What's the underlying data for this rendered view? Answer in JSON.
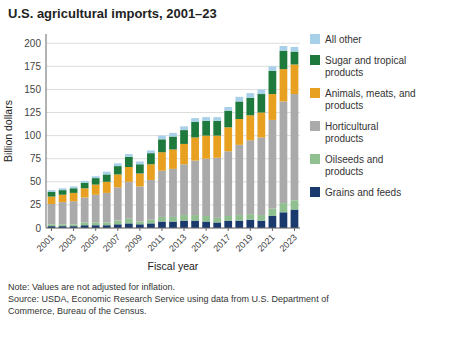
{
  "chart_data": {
    "type": "bar",
    "stacked": true,
    "title": "U.S. agricultural imports, 2001–23",
    "xlabel": "Fiscal year",
    "ylabel": "Billion dollars",
    "annotations": [
      "Note: Values are not adjusted for inflation.\nSource: USDA, Economic Research Service using data from U.S. Department of\nCommerce, Bureau of the Census."
    ],
    "categories": [
      "2001",
      null,
      "2003",
      null,
      "2005",
      null,
      "2007",
      null,
      "2009",
      null,
      "2011",
      null,
      "2013",
      null,
      "2015",
      null,
      "2017",
      null,
      "2019",
      null,
      "2021",
      null,
      "2023"
    ],
    "series": [
      {
        "name": "Grains and feeds",
        "color": "#1a3a6e",
        "values": [
          2,
          2,
          2,
          3,
          3,
          3,
          4,
          5,
          4,
          5,
          7,
          7,
          8,
          8,
          7,
          6,
          8,
          8,
          9,
          8,
          13,
          17,
          20
        ]
      },
      {
        "name": "Oilseeds and\nproducts",
        "color": "#90c090",
        "values": [
          2,
          2,
          2,
          3,
          3,
          3,
          4,
          5,
          3,
          4,
          5,
          5,
          6,
          6,
          6,
          5,
          5,
          6,
          6,
          6,
          8,
          10,
          10
        ]
      },
      {
        "name": "Horticultural\nproducts",
        "color": "#aaaaaa",
        "values": [
          22,
          24,
          25,
          27,
          30,
          32,
          36,
          40,
          38,
          43,
          50,
          52,
          55,
          59,
          62,
          65,
          70,
          76,
          80,
          84,
          96,
          110,
          115
        ]
      },
      {
        "name": "Animals, meats, and\nproducts",
        "color": "#e8a020",
        "values": [
          8,
          8,
          9,
          10,
          11,
          12,
          14,
          16,
          14,
          17,
          20,
          21,
          22,
          25,
          25,
          24,
          26,
          28,
          27,
          27,
          28,
          35,
          32
        ]
      },
      {
        "name": "Sugar and tropical\nproducts",
        "color": "#1e7a3c",
        "values": [
          5,
          5,
          5,
          6,
          7,
          8,
          9,
          11,
          10,
          12,
          14,
          14,
          15,
          17,
          16,
          16,
          18,
          19,
          19,
          20,
          25,
          20,
          14
        ]
      },
      {
        "name": "All other",
        "color": "#a8d0e8",
        "values": [
          2,
          2,
          2,
          2,
          2,
          3,
          3,
          3,
          3,
          3,
          4,
          4,
          4,
          4,
          4,
          4,
          4,
          5,
          5,
          5,
          5,
          5,
          5
        ]
      }
    ],
    "ylim": [
      0,
      210
    ],
    "yticks": [
      0,
      25,
      50,
      75,
      100,
      125,
      150,
      175,
      200
    ],
    "grid": true,
    "legend": "right"
  }
}
